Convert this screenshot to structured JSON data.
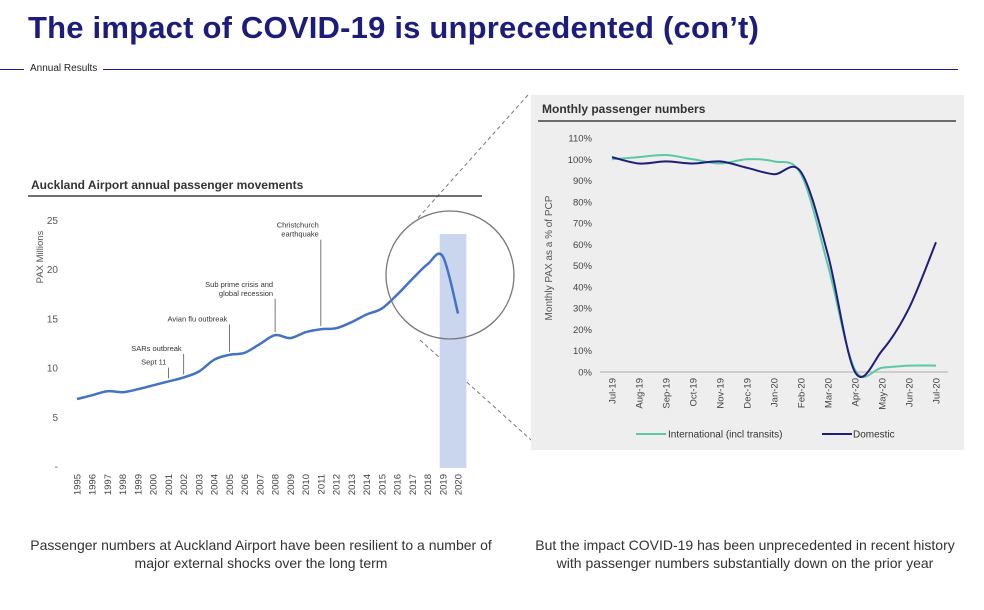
{
  "slide": {
    "title": "The impact of COVID-19 is unprecedented (con’t)",
    "section_label": "Annual Results"
  },
  "captions": {
    "left": "Passenger numbers at Auckland Airport have been resilient to a number of major external shocks over the long term",
    "right": "But the impact COVID-19 has been unprecedented in recent history with passenger numbers substantially down on the prior year"
  },
  "colors": {
    "title": "#1c1c7c",
    "annual_line": "#4472c4",
    "highlight_band": "#c9d6ee",
    "international": "#5bc8a8",
    "domestic": "#1f1f7a",
    "panel_background": "#eeeeee"
  },
  "chart_data": [
    {
      "type": "line",
      "title": "Auckland Airport annual passenger movements",
      "xlabel": "",
      "ylabel": "PAX Millions",
      "ylim": [
        0,
        25
      ],
      "yticks": [
        "-",
        "5",
        "10",
        "15",
        "20",
        "25"
      ],
      "categories": [
        "1995",
        "1996",
        "1997",
        "1998",
        "1999",
        "2000",
        "2001",
        "2002",
        "2003",
        "2004",
        "2005",
        "2006",
        "2007",
        "2008",
        "2009",
        "2010",
        "2011",
        "2012",
        "2013",
        "2014",
        "2015",
        "2016",
        "2017",
        "2018",
        "2019",
        "2020"
      ],
      "series": [
        {
          "values": [
            6.8,
            7.2,
            7.6,
            7.5,
            7.8,
            8.2,
            8.6,
            9.0,
            9.6,
            10.8,
            11.3,
            11.5,
            12.4,
            13.3,
            13.0,
            13.6,
            13.9,
            14.0,
            14.6,
            15.4,
            16.0,
            17.4,
            19.0,
            20.5,
            21.3,
            15.5
          ]
        }
      ],
      "highlight_category": "2020",
      "grid": false,
      "annotations": [
        {
          "category": "2001",
          "lines": [
            "Sept 11"
          ],
          "level": 10.2
        },
        {
          "category": "2002",
          "lines": [
            "SARs outbreak"
          ],
          "level": 11.6
        },
        {
          "category": "2005",
          "lines": [
            "Avian flu outbreak"
          ],
          "level": 14.6
        },
        {
          "category": "2008",
          "lines": [
            "Sub prime crisis and",
            "global recession"
          ],
          "level": 17.2
        },
        {
          "category": "2011",
          "lines": [
            "Christchurch",
            "earthquake"
          ],
          "level": 23.2
        }
      ]
    },
    {
      "type": "line",
      "title": "Monthly passenger numbers",
      "xlabel": "",
      "ylabel": "Monthly PAX as a % of PCP",
      "ylim": [
        0,
        110
      ],
      "ytick_values": [
        0,
        10,
        20,
        30,
        40,
        50,
        60,
        70,
        80,
        90,
        100,
        110
      ],
      "categories": [
        "Jul-19",
        "Aug-19",
        "Sep-19",
        "Oct-19",
        "Nov-19",
        "Dec-19",
        "Jan-20",
        "Feb-20",
        "Mar-20",
        "Apr-20",
        "May-20",
        "Jun-20",
        "Jul-20"
      ],
      "series": [
        {
          "name": "International (incl transits)",
          "values": [
            100,
            101,
            102,
            100,
            98,
            100,
            99,
            93,
            50,
            1,
            2,
            3,
            3
          ]
        },
        {
          "name": "Domestic",
          "values": [
            101,
            98,
            99,
            98,
            99,
            96,
            93,
            94,
            55,
            0,
            10,
            30,
            61
          ]
        }
      ],
      "legend": "bottom",
      "grid": false
    }
  ]
}
